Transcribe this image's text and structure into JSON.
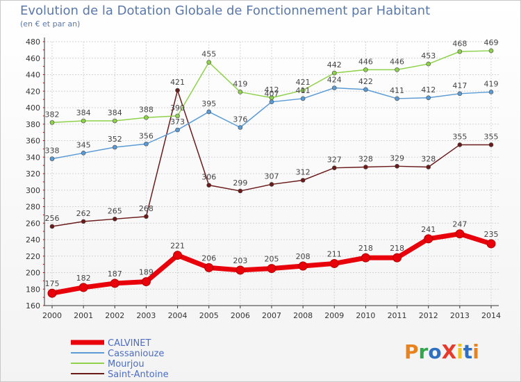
{
  "page": {
    "title": "Evolution de la Dotation Globale de Fonctionnement par Habitant",
    "subtitle": "(en € et par an)",
    "logo": "ProXiti",
    "logo_colors": [
      "#e8821e",
      "#2ea84a",
      "#2f6fc2",
      "#e83a2a",
      "#f2c21a",
      "#2f6fc2",
      "#e8821e"
    ]
  },
  "chart_data": {
    "type": "line",
    "x": [
      2000,
      2001,
      2002,
      2003,
      2004,
      2005,
      2006,
      2007,
      2008,
      2009,
      2010,
      2011,
      2012,
      2013,
      2014
    ],
    "ylim": [
      160,
      480
    ],
    "yticks": [
      160,
      180,
      200,
      220,
      240,
      260,
      280,
      300,
      320,
      340,
      360,
      380,
      400,
      420,
      440,
      460,
      480
    ],
    "grid": true,
    "legend_position": "bottom-left",
    "series": [
      {
        "name": "CALVINET",
        "color": "#e8000a",
        "values": [
          175,
          182,
          187,
          189,
          221,
          206,
          203,
          205,
          208,
          211,
          218,
          218,
          241,
          247,
          235
        ]
      },
      {
        "name": "Cassaniouze",
        "color": "#5b9bd5",
        "values": [
          338,
          345,
          352,
          356,
          373,
          395,
          376,
          407,
          411,
          424,
          422,
          411,
          412,
          417,
          419
        ]
      },
      {
        "name": "Mourjou",
        "color": "#8ed24a",
        "values": [
          382,
          384,
          384,
          388,
          390,
          455,
          419,
          412,
          421,
          442,
          446,
          446,
          453,
          468,
          469
        ]
      },
      {
        "name": "Saint-Antoine",
        "color": "#6b1a1a",
        "values": [
          256,
          262,
          265,
          268,
          421,
          306,
          299,
          307,
          312,
          327,
          328,
          329,
          328,
          355,
          355
        ]
      }
    ]
  }
}
